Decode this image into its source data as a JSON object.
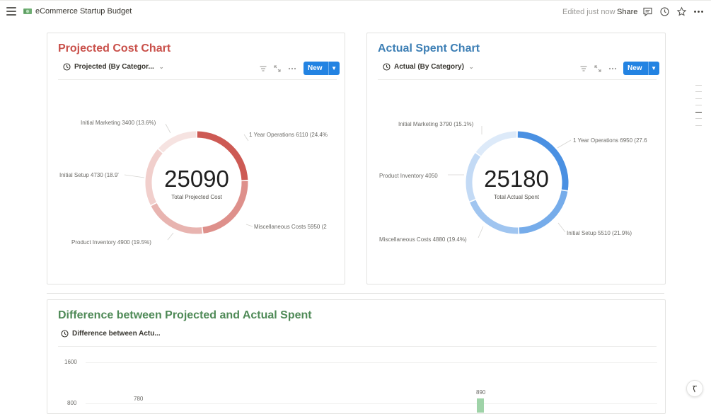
{
  "topbar": {
    "page_title": "eCommerce Startup Budget",
    "edited": "Edited just now",
    "share": "Share",
    "icons": [
      "menu-icon",
      "comment-icon",
      "clock-icon",
      "star-icon",
      "more-icon"
    ]
  },
  "projected": {
    "title": "Projected Cost Chart",
    "title_color": "#c9504a",
    "view_label": "Projected (By Categor...",
    "new_label": "New",
    "total": "25090",
    "total_label": "Total Projected Cost",
    "slice_labels": [
      "1 Year Operations 6110 (24.4%",
      "Miscellaneous Costs 5950 (2",
      "Product Inventory 4900 (19.5%)",
      "Initial Setup 4730 (18.9'",
      "Initial Marketing 3400 (13.6%)"
    ]
  },
  "actual": {
    "title": "Actual Spent Chart",
    "title_color": "#3d7fb5",
    "view_label": "Actual (By Category)",
    "new_label": "New",
    "total": "25180",
    "total_label": "Total Actual Spent",
    "slice_labels": [
      "1 Year Operations 6950 (27.6",
      "Initial Setup 5510 (21.9%)",
      "Miscellaneous Costs 4880 (19.4%)",
      "Product Inventory 4050",
      "Initial Marketing 3790 (15.1%)"
    ]
  },
  "difference": {
    "title": "Difference between Projected and Actual Spent",
    "title_color": "#4f8a57",
    "view_label": "Difference between Actu...",
    "y_ticks": [
      "1600",
      "800"
    ],
    "bar_labels": [
      "780",
      "890"
    ]
  },
  "chart_data": [
    {
      "type": "pie",
      "title": "Projected Cost Chart",
      "center_value": 25090,
      "center_label": "Total Projected Cost",
      "categories": [
        "1 Year Operations",
        "Miscellaneous Costs",
        "Product Inventory",
        "Initial Setup",
        "Initial Marketing"
      ],
      "values": [
        6110,
        5950,
        4900,
        4730,
        3400
      ],
      "colors": [
        "#cd5a54",
        "#de908b",
        "#e8b4b0",
        "#f1cfcc",
        "#f6e3e1"
      ]
    },
    {
      "type": "pie",
      "title": "Actual Spent Chart",
      "center_value": 25180,
      "center_label": "Total Actual Spent",
      "categories": [
        "1 Year Operations",
        "Initial Setup",
        "Miscellaneous Costs",
        "Product Inventory",
        "Initial Marketing"
      ],
      "values": [
        6950,
        5510,
        4880,
        4050,
        3790
      ],
      "colors": [
        "#4a90e2",
        "#76acea",
        "#a0c5f0",
        "#c3daf5",
        "#ddeaf9"
      ]
    },
    {
      "type": "bar",
      "title": "Difference between Projected and Actual Spent",
      "yticks": [
        1600,
        800
      ],
      "bar_values": [
        780,
        890
      ],
      "bar_color": "#9fd3a8"
    }
  ]
}
